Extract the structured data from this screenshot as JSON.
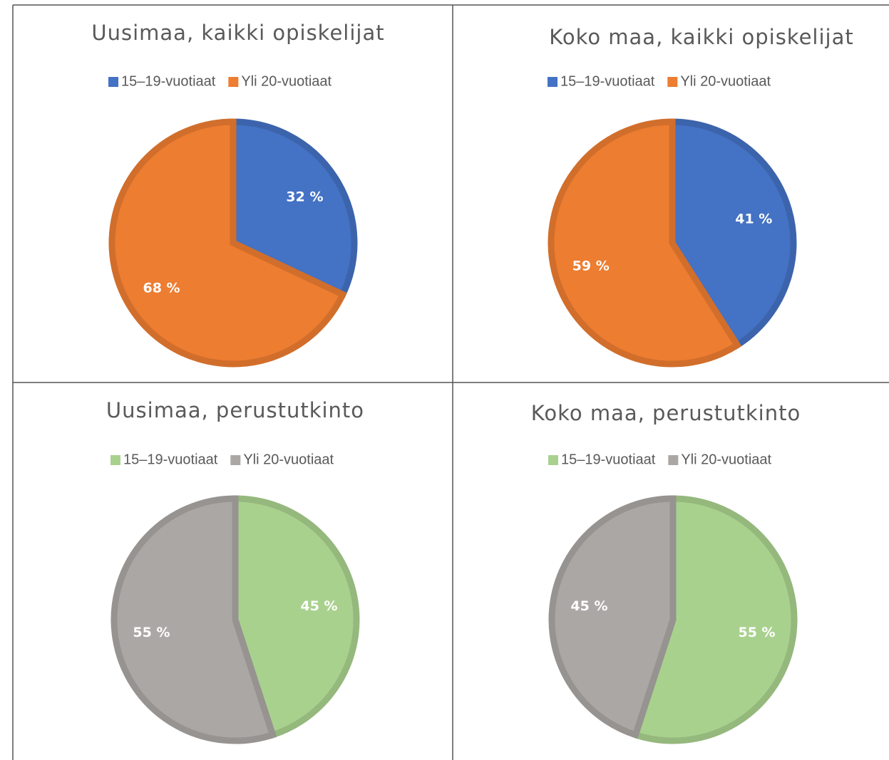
{
  "chart_data": [
    {
      "type": "pie",
      "title": "Uusimaa, kaikki opiskelijat",
      "categories": [
        "15–19-vuotiaat",
        "Yli 20-vuotiaat"
      ],
      "values": [
        32,
        68
      ],
      "value_labels": [
        "32 %",
        "68 %"
      ],
      "colors": [
        "#4472c4",
        "#ed7d31"
      ]
    },
    {
      "type": "pie",
      "title": "Koko maa, kaikki opiskelijat",
      "categories": [
        "15–19-vuotiaat",
        "Yli 20-vuotiaat"
      ],
      "values": [
        41,
        59
      ],
      "value_labels": [
        "41 %",
        "59 %"
      ],
      "colors": [
        "#4472c4",
        "#ed7d31"
      ]
    },
    {
      "type": "pie",
      "title": "Uusimaa, perustutkinto",
      "categories": [
        "15–19-vuotiaat",
        "Yli 20-vuotiaat"
      ],
      "values": [
        45,
        55
      ],
      "value_labels": [
        "45 %",
        "55 %"
      ],
      "colors": [
        "#a9d18e",
        "#aba7a5"
      ]
    },
    {
      "type": "pie",
      "title": "Koko maa, perustutkinto",
      "categories": [
        "15–19-vuotiaat",
        "Yli 20-vuotiaat"
      ],
      "values": [
        55,
        45
      ],
      "value_labels": [
        "55 %",
        "45 %"
      ],
      "colors": [
        "#a9d18e",
        "#aba7a5"
      ]
    }
  ]
}
